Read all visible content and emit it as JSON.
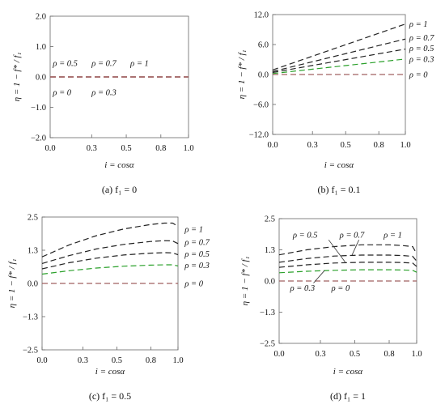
{
  "chart_data": [
    {
      "type": "line",
      "caption": "(a)  f₁ = 0",
      "xlabel": "i = cosα",
      "ylabel": "η = 1 − f* / f₁",
      "xlim": [
        0,
        1
      ],
      "ylim": [
        -2,
        2
      ],
      "xticks": [
        "0.0",
        "0.3",
        "0.5",
        "0.8",
        "1.0"
      ],
      "yticks": [
        "2.0",
        "1.0",
        "0.0",
        "−1.0",
        "−2.0"
      ],
      "ytick_values": [
        2,
        1,
        0,
        -1,
        -2
      ],
      "series": [
        {
          "name": "ρ = 0",
          "color": "#a06060",
          "x": [
            0,
            1
          ],
          "y": [
            0,
            0
          ]
        },
        {
          "name": "ρ = 0.3",
          "color": "#a06060",
          "x": [
            0,
            1
          ],
          "y": [
            0,
            0
          ]
        },
        {
          "name": "ρ = 0.5",
          "color": "#a06060",
          "x": [
            0,
            1
          ],
          "y": [
            0,
            0
          ]
        },
        {
          "name": "ρ = 0.7",
          "color": "#a06060",
          "x": [
            0,
            1
          ],
          "y": [
            0,
            0
          ]
        },
        {
          "name": "ρ = 1",
          "color": "#a06060",
          "x": [
            0,
            1
          ],
          "y": [
            0,
            0
          ]
        }
      ],
      "labels": [
        {
          "text": "ρ = 0.5",
          "x": 0.02,
          "y": 0.45
        },
        {
          "text": "ρ = 0.7",
          "x": 0.3,
          "y": 0.45
        },
        {
          "text": "ρ = 1",
          "x": 0.58,
          "y": 0.45
        },
        {
          "text": "ρ = 0",
          "x": 0.02,
          "y": -0.5
        },
        {
          "text": "ρ = 0.3",
          "x": 0.3,
          "y": -0.5
        }
      ]
    },
    {
      "type": "line",
      "caption": "(b)  f₁ = 0.1",
      "xlabel": "i = cosα",
      "ylabel": "η = 1 − f* / f₁",
      "xlim": [
        0,
        1
      ],
      "ylim": [
        -12,
        12
      ],
      "xticks": [
        "0.0",
        "0.3",
        "0.5",
        "0.8",
        "1.0"
      ],
      "yticks": [
        "12.0",
        "6.0",
        "0.0",
        "−6.0",
        "−12.0"
      ],
      "ytick_values": [
        12,
        6,
        0,
        -6,
        -12
      ],
      "series": [
        {
          "name": "ρ = 1",
          "color": "#222222",
          "x": [
            0,
            1
          ],
          "y": [
            0.9,
            10.1
          ]
        },
        {
          "name": "ρ = 0.7",
          "color": "#222222",
          "x": [
            0,
            1
          ],
          "y": [
            0.6,
            7.1
          ]
        },
        {
          "name": "ρ = 0.5",
          "color": "#222222",
          "x": [
            0,
            1
          ],
          "y": [
            0.4,
            5.1
          ]
        },
        {
          "name": "ρ = 0.3",
          "color": "#2aa02a",
          "x": [
            0,
            1
          ],
          "y": [
            0.2,
            3.1
          ]
        },
        {
          "name": "ρ = 0",
          "color": "#a06060",
          "x": [
            0,
            1
          ],
          "y": [
            0,
            0
          ]
        }
      ],
      "labels": [
        {
          "text": "ρ = 1",
          "x": 1.03,
          "y": 10.1
        },
        {
          "text": "ρ = 0.7",
          "x": 1.03,
          "y": 7.4
        },
        {
          "text": "ρ = 0.5",
          "x": 1.03,
          "y": 5.3
        },
        {
          "text": "ρ = 0.3",
          "x": 1.03,
          "y": 3.1
        },
        {
          "text": "ρ = 0",
          "x": 1.03,
          "y": 0
        }
      ]
    },
    {
      "type": "line",
      "caption": "(c)  f₁ = 0.5",
      "xlabel": "i = cosα",
      "ylabel": "η = 1 − f* / f₁",
      "xlim": [
        0,
        1
      ],
      "ylim": [
        -2.5,
        2.5
      ],
      "xticks": [
        "0.0",
        "0.3",
        "0.5",
        "0.8",
        "1.0"
      ],
      "yticks": [
        "2.5",
        "1.3",
        "0.0",
        "−1.3",
        "−2.5"
      ],
      "ytick_values": [
        2.5,
        1.25,
        0,
        -1.25,
        -2.5
      ],
      "series": [
        {
          "name": "ρ = 1",
          "color": "#222222",
          "x": [
            0,
            0.2,
            0.4,
            0.6,
            0.8,
            0.9,
            0.96,
            1.0
          ],
          "y": [
            1.0,
            1.45,
            1.8,
            2.05,
            2.22,
            2.27,
            2.27,
            2.15
          ]
        },
        {
          "name": "ρ = 0.7",
          "color": "#222222",
          "x": [
            0,
            0.2,
            0.4,
            0.6,
            0.8,
            0.9,
            0.96,
            1.0
          ],
          "y": [
            0.75,
            1.05,
            1.3,
            1.47,
            1.58,
            1.61,
            1.6,
            1.5
          ]
        },
        {
          "name": "ρ = 0.5",
          "color": "#222222",
          "x": [
            0,
            0.2,
            0.4,
            0.6,
            0.8,
            0.9,
            0.96,
            1.0
          ],
          "y": [
            0.55,
            0.78,
            0.95,
            1.07,
            1.14,
            1.16,
            1.15,
            1.08
          ]
        },
        {
          "name": "ρ = 0.3",
          "color": "#2aa02a",
          "x": [
            0,
            0.2,
            0.4,
            0.6,
            0.8,
            0.9,
            0.96,
            1.0
          ],
          "y": [
            0.35,
            0.48,
            0.58,
            0.65,
            0.69,
            0.7,
            0.7,
            0.66
          ]
        },
        {
          "name": "ρ = 0",
          "color": "#a06060",
          "x": [
            0,
            1
          ],
          "y": [
            0,
            0
          ]
        }
      ],
      "labels": [
        {
          "text": "ρ = 1",
          "x": 1.05,
          "y": 2.05
        },
        {
          "text": "ρ = 0.7",
          "x": 1.05,
          "y": 1.55
        },
        {
          "text": "ρ = 0.5",
          "x": 1.05,
          "y": 1.12
        },
        {
          "text": "ρ = 0.3",
          "x": 1.05,
          "y": 0.68
        },
        {
          "text": "ρ = 0",
          "x": 1.05,
          "y": 0
        }
      ]
    },
    {
      "type": "line",
      "caption": "(d)  f₁ = 1",
      "xlabel": "i = cosα",
      "ylabel": "η = 1 − f* / f₁",
      "xlim": [
        0,
        1
      ],
      "ylim": [
        -2.5,
        2.5
      ],
      "xticks": [
        "0.0",
        "0.3",
        "0.5",
        "0.8",
        "1.0"
      ],
      "yticks": [
        "2.5",
        "1.3",
        "0.0",
        "−1.3",
        "−2.5"
      ],
      "ytick_values": [
        2.5,
        1.25,
        0,
        -1.25,
        -2.5
      ],
      "series": [
        {
          "name": "ρ = 1",
          "color": "#222222",
          "x": [
            0,
            0.2,
            0.4,
            0.6,
            0.8,
            0.9,
            0.97,
            1.0
          ],
          "y": [
            1.05,
            1.25,
            1.38,
            1.45,
            1.45,
            1.42,
            1.38,
            1.1
          ]
        },
        {
          "name": "ρ = 0.7",
          "color": "#222222",
          "x": [
            0,
            0.2,
            0.4,
            0.6,
            0.8,
            0.9,
            0.97,
            1.0
          ],
          "y": [
            0.75,
            0.9,
            1.0,
            1.04,
            1.04,
            1.02,
            0.99,
            0.8
          ]
        },
        {
          "name": "ρ = 0.5",
          "color": "#222222",
          "x": [
            0,
            0.2,
            0.4,
            0.6,
            0.8,
            0.9,
            0.97,
            1.0
          ],
          "y": [
            0.55,
            0.65,
            0.72,
            0.75,
            0.75,
            0.74,
            0.72,
            0.58
          ]
        },
        {
          "name": "ρ = 0.3",
          "color": "#2aa02a",
          "x": [
            0,
            0.2,
            0.4,
            0.6,
            0.8,
            0.9,
            0.97,
            1.0
          ],
          "y": [
            0.33,
            0.39,
            0.43,
            0.45,
            0.45,
            0.44,
            0.43,
            0.35
          ]
        },
        {
          "name": "ρ = 0",
          "color": "#a06060",
          "x": [
            0,
            1
          ],
          "y": [
            0,
            0
          ]
        }
      ],
      "labels": [
        {
          "text": "ρ = 0.5",
          "x": 0.1,
          "y": 1.85
        },
        {
          "text": "ρ = 0.7",
          "x": 0.44,
          "y": 1.85
        },
        {
          "text": "ρ = 1",
          "x": 0.76,
          "y": 1.85
        },
        {
          "text": "ρ = 0.3",
          "x": 0.08,
          "y": -0.28
        },
        {
          "text": "ρ = 0",
          "x": 0.38,
          "y": -0.28
        }
      ],
      "arrows": [
        {
          "from": [
            0.36,
            1.65
          ],
          "to": [
            0.48,
            0.76
          ]
        },
        {
          "from": [
            0.58,
            1.65
          ],
          "to": [
            0.53,
            1.04
          ]
        },
        {
          "from": [
            0.25,
            -0.08
          ],
          "to": [
            0.33,
            0.42
          ]
        }
      ]
    }
  ]
}
